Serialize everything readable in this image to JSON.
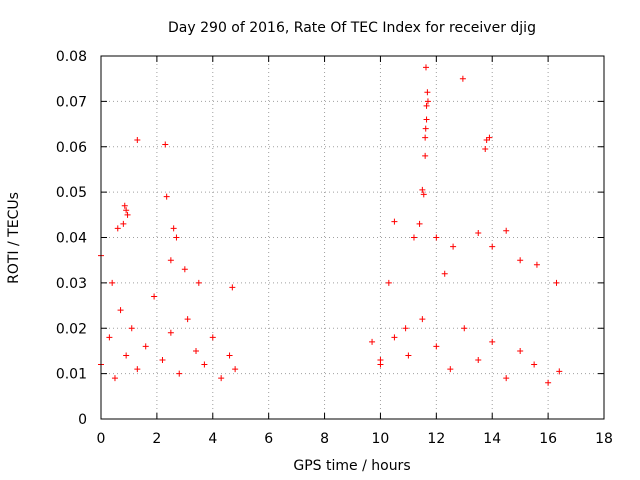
{
  "chart_data": {
    "type": "scatter",
    "title": "Day 290 of 2016, Rate Of TEC Index for receiver djig",
    "xlabel": "GPS time / hours",
    "ylabel": "ROTI / TECUs",
    "xlim": [
      0,
      18
    ],
    "ylim": [
      0,
      0.08
    ],
    "x_ticks": [
      0,
      2,
      4,
      6,
      8,
      10,
      12,
      14,
      16,
      18
    ],
    "y_ticks": [
      0,
      0.01,
      0.02,
      0.03,
      0.04,
      0.05,
      0.06,
      0.07,
      0.08
    ],
    "x_tick_labels": [
      "0",
      "2",
      "4",
      "6",
      "8",
      "10",
      "12",
      "14",
      "16",
      "18"
    ],
    "y_tick_labels": [
      "0",
      "0.01",
      "0.02",
      "0.03",
      "0.04",
      "0.05",
      "0.06",
      "0.07",
      "0.08"
    ],
    "grid": true,
    "marker": "+",
    "color": "#ff0000",
    "series": [
      {
        "name": "ROTI",
        "points": [
          [
            0.0,
            0.012
          ],
          [
            0.3,
            0.018
          ],
          [
            0.5,
            0.009
          ],
          [
            0.7,
            0.024
          ],
          [
            0.9,
            0.014
          ],
          [
            1.1,
            0.02
          ],
          [
            1.3,
            0.011
          ],
          [
            1.6,
            0.016
          ],
          [
            1.9,
            0.027
          ],
          [
            2.2,
            0.013
          ],
          [
            2.5,
            0.019
          ],
          [
            2.8,
            0.01
          ],
          [
            3.1,
            0.022
          ],
          [
            3.4,
            0.015
          ],
          [
            3.7,
            0.012
          ],
          [
            4.0,
            0.018
          ],
          [
            4.3,
            0.009
          ],
          [
            4.6,
            0.014
          ],
          [
            4.8,
            0.011
          ],
          [
            0.0,
            0.036
          ],
          [
            0.4,
            0.03
          ],
          [
            0.6,
            0.042
          ],
          [
            0.8,
            0.043
          ],
          [
            0.85,
            0.047
          ],
          [
            0.9,
            0.046
          ],
          [
            0.95,
            0.045
          ],
          [
            1.3,
            0.0615
          ],
          [
            2.3,
            0.0605
          ],
          [
            2.35,
            0.049
          ],
          [
            2.6,
            0.042
          ],
          [
            2.7,
            0.04
          ],
          [
            2.5,
            0.035
          ],
          [
            3.0,
            0.033
          ],
          [
            3.5,
            0.03
          ],
          [
            4.7,
            0.029
          ],
          [
            9.7,
            0.017
          ],
          [
            10.0,
            0.013
          ],
          [
            10.3,
            0.03
          ],
          [
            10.5,
            0.0435
          ],
          [
            10.9,
            0.02
          ],
          [
            11.2,
            0.04
          ],
          [
            11.4,
            0.043
          ],
          [
            11.5,
            0.0505
          ],
          [
            11.55,
            0.0495
          ],
          [
            11.6,
            0.058
          ],
          [
            11.6,
            0.062
          ],
          [
            11.62,
            0.064
          ],
          [
            11.65,
            0.066
          ],
          [
            11.65,
            0.069
          ],
          [
            11.7,
            0.07
          ],
          [
            11.68,
            0.072
          ],
          [
            11.63,
            0.0775
          ],
          [
            12.0,
            0.04
          ],
          [
            12.3,
            0.032
          ],
          [
            12.6,
            0.038
          ],
          [
            12.95,
            0.075
          ],
          [
            13.5,
            0.041
          ],
          [
            13.75,
            0.0595
          ],
          [
            13.8,
            0.0615
          ],
          [
            13.9,
            0.062
          ],
          [
            14.0,
            0.038
          ],
          [
            14.5,
            0.0415
          ],
          [
            15.0,
            0.035
          ],
          [
            15.6,
            0.034
          ],
          [
            16.3,
            0.03
          ],
          [
            16.4,
            0.0105
          ],
          [
            10.0,
            0.012
          ],
          [
            10.5,
            0.018
          ],
          [
            11.0,
            0.014
          ],
          [
            11.5,
            0.022
          ],
          [
            12.0,
            0.016
          ],
          [
            12.5,
            0.011
          ],
          [
            13.0,
            0.02
          ],
          [
            13.5,
            0.013
          ],
          [
            14.0,
            0.017
          ],
          [
            14.5,
            0.009
          ],
          [
            15.0,
            0.015
          ],
          [
            15.5,
            0.012
          ],
          [
            16.0,
            0.008
          ]
        ]
      }
    ]
  }
}
